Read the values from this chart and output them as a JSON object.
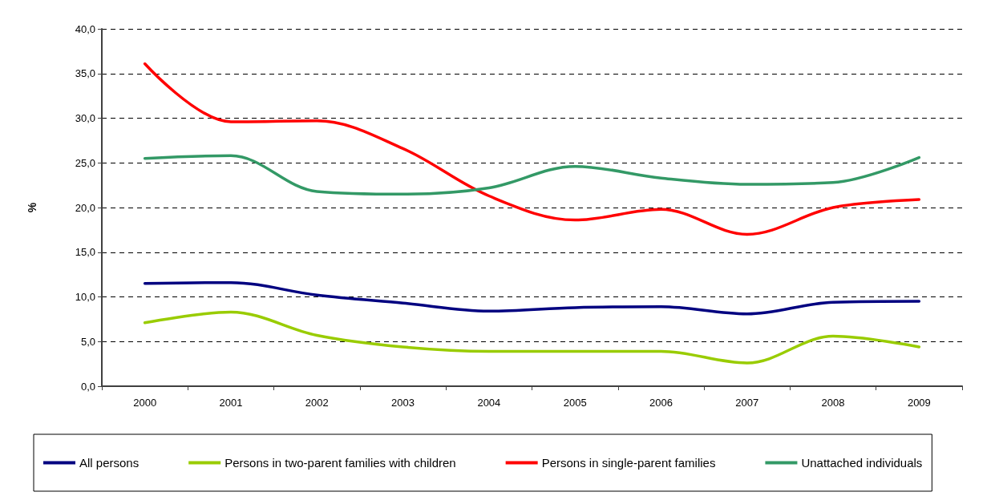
{
  "chart_data": {
    "type": "line",
    "ylabel": "%",
    "categories": [
      "2000",
      "2001",
      "2002",
      "2003",
      "2004",
      "2005",
      "2006",
      "2007",
      "2008",
      "2009"
    ],
    "series": [
      {
        "name": "All persons",
        "color": "#000080",
        "values": [
          11.5,
          11.6,
          10.2,
          9.3,
          8.4,
          8.8,
          8.9,
          8.1,
          9.4,
          9.5
        ]
      },
      {
        "name": "Persons in two-parent families with children",
        "color": "#99cc00",
        "values": [
          7.1,
          8.3,
          5.7,
          4.4,
          3.9,
          3.9,
          3.9,
          2.6,
          5.6,
          4.4
        ]
      },
      {
        "name": "Persons in single-parent families",
        "color": "#ff0000",
        "values": [
          36.1,
          29.6,
          29.7,
          26.6,
          21.3,
          18.6,
          19.8,
          17.0,
          20.0,
          20.9
        ]
      },
      {
        "name": "Unattached individuals",
        "color": "#339966",
        "values": [
          25.5,
          25.8,
          21.8,
          21.5,
          22.2,
          24.6,
          23.3,
          22.6,
          22.8,
          25.6
        ]
      }
    ],
    "ylim": [
      0,
      40
    ],
    "yticks": [
      {
        "value": 0,
        "label": "0,0"
      },
      {
        "value": 5,
        "label": "5,0"
      },
      {
        "value": 10,
        "label": "10,0"
      },
      {
        "value": 15,
        "label": "15,0"
      },
      {
        "value": 20,
        "label": "20,0"
      },
      {
        "value": 25,
        "label": "25,0"
      },
      {
        "value": 30,
        "label": "30,0"
      },
      {
        "value": 35,
        "label": "35,0"
      },
      {
        "value": 40,
        "label": "40,0"
      }
    ],
    "grid": "y",
    "legend": "bottom",
    "marker": "none",
    "line_style": "solid"
  }
}
